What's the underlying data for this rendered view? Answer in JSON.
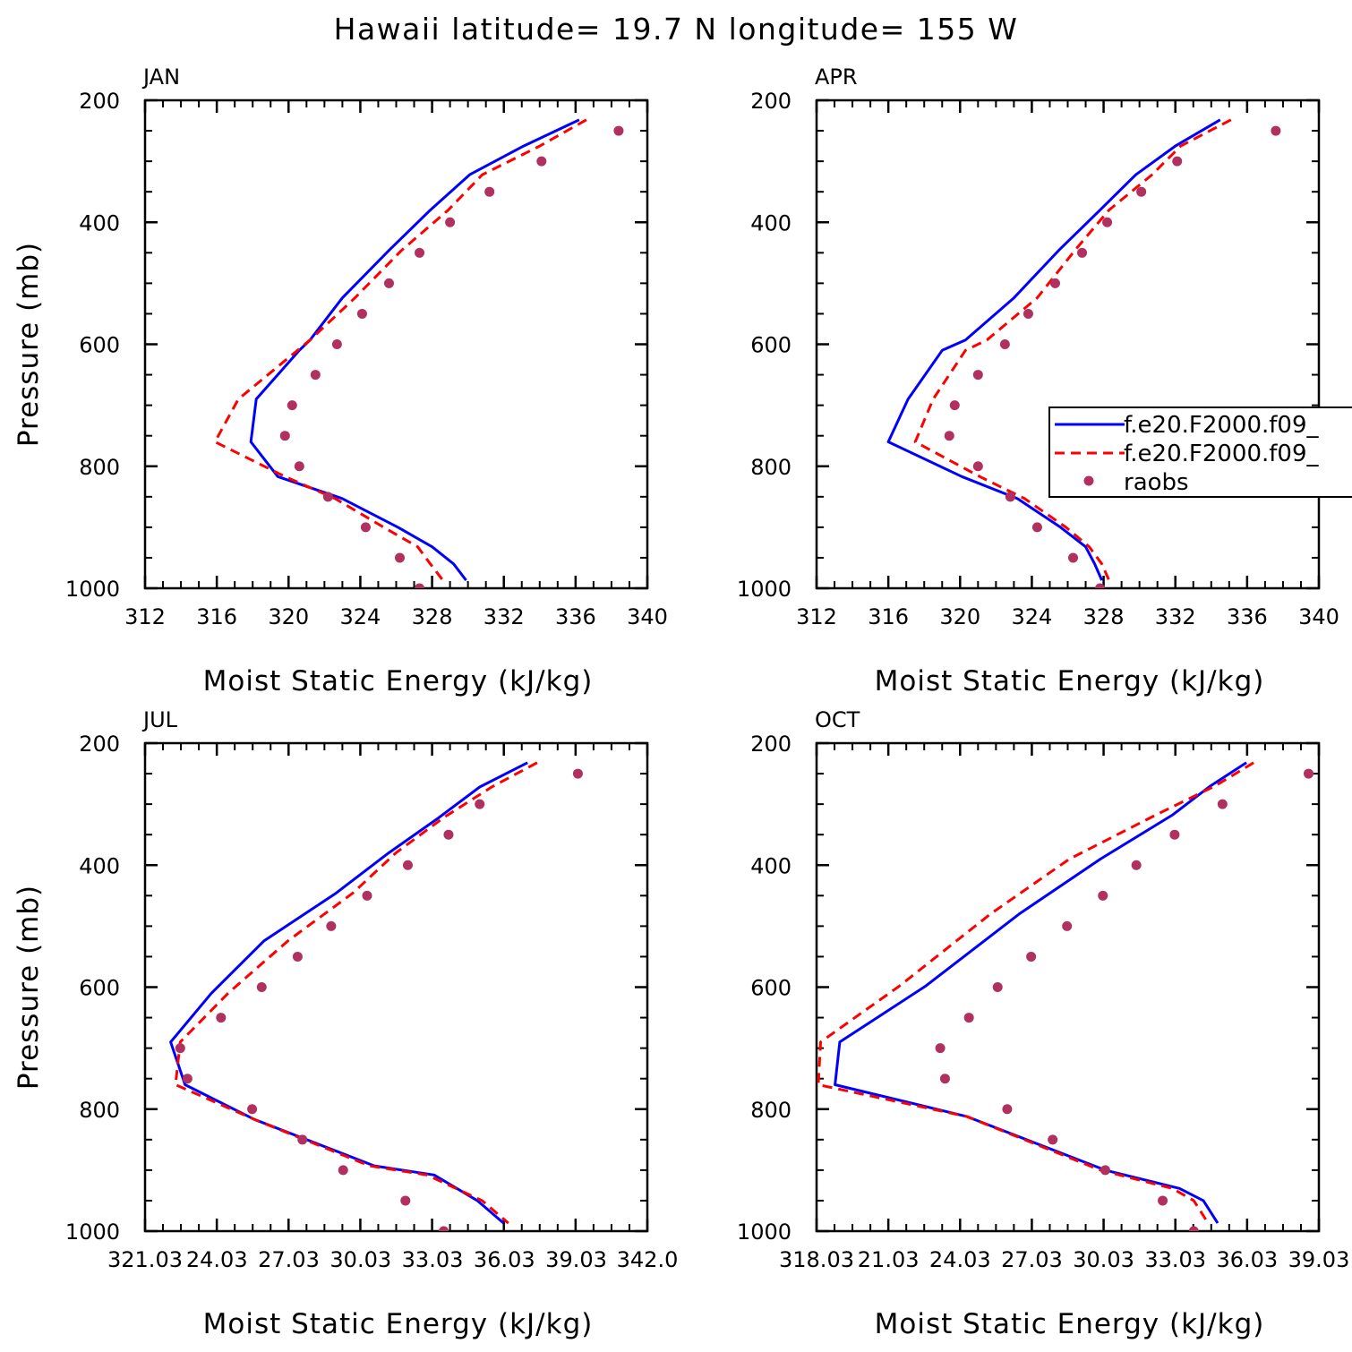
{
  "figure": {
    "title": "Hawaii  latitude= 19.7 N longitude= 155 W"
  },
  "chart_data": [
    {
      "type": "line",
      "panel": "JAN",
      "xlabel": "Moist Static Energy (kJ/kg)",
      "ylabel": "Pressure (mb)",
      "xlim": [
        312,
        340
      ],
      "ylim": [
        1000,
        200
      ],
      "x_ticks": [
        312,
        316,
        320,
        324,
        328,
        332,
        336,
        340
      ],
      "x_tick_labels": [
        "312",
        "316",
        "320",
        "324",
        "328",
        "332",
        "336",
        "340"
      ],
      "y_ticks": [
        200,
        400,
        600,
        800,
        1000
      ],
      "y_tick_labels": [
        "200",
        "400",
        "600",
        "800",
        "1000"
      ],
      "series": [
        {
          "name": "f.e20.F2000.f09_",
          "style": "solid",
          "color": "#0000ff",
          "x": [
            336.2,
            333.1,
            330.1,
            327.9,
            325.6,
            323.0,
            321.2,
            320.6,
            318.2,
            317.9,
            319.4,
            323.0,
            326.1,
            328.0,
            329.2,
            329.9
          ],
          "y": [
            232,
            275,
            322,
            380,
            446,
            524,
            593,
            610,
            690,
            760,
            817,
            853,
            900,
            932,
            960,
            987
          ]
        },
        {
          "name": "f.e20.F2000.f09_",
          "style": "dashed",
          "color": "#ff0000",
          "x": [
            336.6,
            334.0,
            330.8,
            328.9,
            326.3,
            323.7,
            321.2,
            320.5,
            317.2,
            315.9,
            319.8,
            322.6,
            325.3,
            327.2,
            327.9,
            328.6
          ],
          "y": [
            232,
            275,
            322,
            380,
            446,
            524,
            593,
            610,
            690,
            760,
            817,
            853,
            900,
            932,
            960,
            987
          ]
        },
        {
          "name": "raobs",
          "style": "markers",
          "color": "#b03060",
          "x": [
            338.4,
            334.1,
            331.2,
            329.0,
            327.3,
            325.6,
            324.1,
            322.7,
            321.5,
            320.2,
            319.8,
            320.6,
            322.2,
            324.3,
            326.2,
            327.3
          ],
          "y": [
            250,
            300,
            350,
            400,
            450,
            500,
            550,
            600,
            650,
            700,
            750,
            800,
            850,
            900,
            950,
            1000
          ]
        }
      ]
    },
    {
      "type": "line",
      "panel": "APR",
      "xlabel": "Moist Static Energy (kJ/kg)",
      "ylabel": "",
      "xlim": [
        312,
        340
      ],
      "ylim": [
        1000,
        200
      ],
      "x_ticks": [
        312,
        316,
        320,
        324,
        328,
        332,
        336,
        340
      ],
      "x_tick_labels": [
        "312",
        "316",
        "320",
        "324",
        "328",
        "332",
        "336",
        "340"
      ],
      "y_ticks": [
        200,
        400,
        600,
        800,
        1000
      ],
      "y_tick_labels": [
        "200",
        "400",
        "600",
        "800",
        "1000"
      ],
      "series": [
        {
          "name": "f.e20.F2000.f09_",
          "style": "solid",
          "color": "#0000ff",
          "x": [
            334.5,
            332.0,
            329.8,
            327.8,
            325.5,
            323.0,
            320.3,
            319.0,
            317.1,
            316.0,
            320.1,
            323.2,
            325.6,
            327.0,
            327.5,
            327.9
          ],
          "y": [
            232,
            275,
            322,
            380,
            446,
            524,
            593,
            610,
            690,
            760,
            817,
            853,
            900,
            932,
            960,
            987
          ]
        },
        {
          "name": "f.e20.F2000.f09_",
          "style": "dashed",
          "color": "#ff0000",
          "x": [
            335.1,
            332.3,
            330.7,
            328.3,
            326.4,
            324.3,
            321.5,
            320.3,
            318.5,
            317.5,
            321.1,
            323.6,
            325.9,
            327.2,
            327.9,
            328.3
          ],
          "y": [
            232,
            275,
            322,
            380,
            446,
            524,
            593,
            610,
            690,
            760,
            817,
            853,
            900,
            932,
            960,
            987
          ]
        },
        {
          "name": "raobs",
          "style": "markers",
          "color": "#b03060",
          "x": [
            337.6,
            332.1,
            330.1,
            328.2,
            326.8,
            325.3,
            323.8,
            322.5,
            321.0,
            319.7,
            319.4,
            321.0,
            322.8,
            324.3,
            326.3,
            327.8
          ],
          "y": [
            250,
            300,
            350,
            400,
            450,
            500,
            550,
            600,
            650,
            700,
            750,
            800,
            850,
            900,
            950,
            1000
          ]
        }
      ]
    },
    {
      "type": "line",
      "panel": "JUL",
      "xlabel": "Moist Static Energy (kJ/kg)",
      "ylabel": "Pressure (mb)",
      "xlim": [
        321.03,
        342.0
      ],
      "ylim": [
        1000,
        200
      ],
      "x_ticks": [
        321.03,
        324.03,
        327.03,
        330.03,
        333.03,
        336.03,
        339.03,
        342.0
      ],
      "x_tick_labels": [
        "321.03",
        "24.03",
        "27.03",
        "30.03",
        "33.03",
        "36.03",
        "39.03",
        "342.0"
      ],
      "y_ticks": [
        200,
        400,
        600,
        800,
        1000
      ],
      "y_tick_labels": [
        "200",
        "400",
        "600",
        "800",
        "1000"
      ],
      "series": [
        {
          "name": "f.e20.F2000.f09_",
          "style": "solid",
          "color": "#0000ff",
          "x": [
            337.0,
            335.0,
            333.3,
            331.2,
            329.0,
            326.0,
            323.8,
            322.1,
            322.7,
            325.6,
            330.6,
            333.1,
            334.9,
            336.0
          ],
          "y": [
            232,
            272,
            322,
            380,
            446,
            524,
            610,
            690,
            760,
            817,
            893,
            908,
            950,
            987
          ]
        },
        {
          "name": "f.e20.F2000.f09_",
          "style": "dashed",
          "color": "#ff0000",
          "x": [
            337.4,
            335.5,
            333.5,
            331.5,
            329.7,
            327.0,
            324.5,
            322.5,
            322.3,
            325.6,
            330.4,
            332.8,
            335.1,
            336.2
          ],
          "y": [
            232,
            272,
            322,
            380,
            446,
            524,
            610,
            690,
            760,
            817,
            893,
            908,
            950,
            987
          ]
        },
        {
          "name": "raobs",
          "style": "markers",
          "color": "#b03060",
          "x": [
            339.1,
            335.0,
            333.7,
            332.0,
            330.3,
            328.8,
            327.4,
            325.9,
            324.2,
            322.5,
            322.8,
            325.5,
            327.6,
            329.3,
            331.9,
            333.5
          ],
          "y": [
            250,
            300,
            350,
            400,
            450,
            500,
            550,
            600,
            650,
            700,
            750,
            800,
            850,
            900,
            950,
            1000
          ]
        }
      ]
    },
    {
      "type": "line",
      "panel": "OCT",
      "xlabel": "Moist Static Energy (kJ/kg)",
      "ylabel": "",
      "xlim": [
        318.03,
        339.03
      ],
      "ylim": [
        1000,
        200
      ],
      "x_ticks": [
        318.03,
        321.03,
        324.03,
        327.03,
        330.03,
        333.03,
        336.03,
        339.03
      ],
      "x_tick_labels": [
        "318.03",
        "21.03",
        "24.03",
        "27.03",
        "30.03",
        "33.03",
        "36.03",
        "39.03"
      ],
      "y_ticks": [
        200,
        400,
        600,
        800,
        1000
      ],
      "y_tick_labels": [
        "200",
        "400",
        "600",
        "800",
        "1000"
      ],
      "series": [
        {
          "name": "f.e20.F2000.f09_",
          "style": "solid",
          "color": "#0000ff",
          "x": [
            336.0,
            334.5,
            332.9,
            329.9,
            326.5,
            322.6,
            319.0,
            318.8,
            324.3,
            330.1,
            333.2,
            334.2,
            334.8
          ],
          "y": [
            232,
            270,
            318,
            390,
            480,
            598,
            690,
            760,
            812,
            900,
            930,
            950,
            987
          ]
        },
        {
          "name": "f.e20.F2000.f09_",
          "style": "dashed",
          "color": "#ff0000",
          "x": [
            336.3,
            334.7,
            332.2,
            328.6,
            325.3,
            321.5,
            318.2,
            318.1,
            324.3,
            329.9,
            332.9,
            333.8,
            334.4
          ],
          "y": [
            232,
            270,
            318,
            390,
            480,
            598,
            690,
            760,
            812,
            900,
            930,
            950,
            987
          ]
        },
        {
          "name": "raobs",
          "style": "markers",
          "color": "#b03060",
          "x": [
            338.6,
            335.0,
            333.0,
            331.4,
            330.0,
            328.5,
            327.0,
            325.6,
            324.4,
            323.2,
            323.4,
            326.0,
            327.9,
            330.1,
            332.5,
            333.8
          ],
          "y": [
            250,
            300,
            350,
            400,
            450,
            500,
            550,
            600,
            650,
            700,
            750,
            800,
            850,
            900,
            950,
            1000
          ]
        }
      ]
    }
  ],
  "legend": {
    "entries": [
      {
        "label": "f.e20.F2000.f09_",
        "style": "solid",
        "color": "#0000ff"
      },
      {
        "label": "f.e20.F2000.f09_",
        "style": "dashed",
        "color": "#ff0000"
      },
      {
        "label": "raobs",
        "style": "markers",
        "color": "#b03060"
      }
    ]
  }
}
